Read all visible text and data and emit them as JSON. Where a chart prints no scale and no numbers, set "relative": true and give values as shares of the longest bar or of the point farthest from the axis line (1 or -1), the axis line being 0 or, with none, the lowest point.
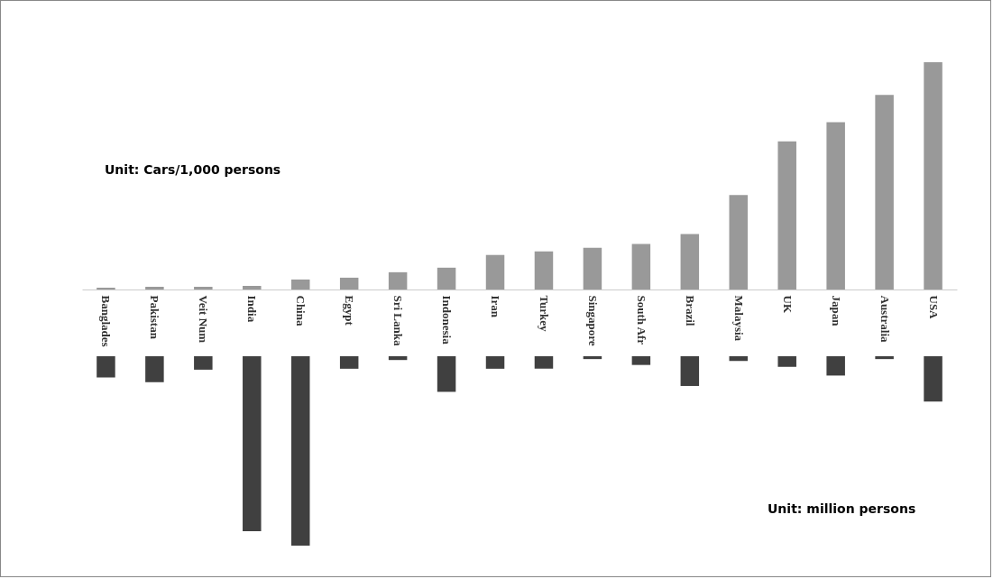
{
  "chart_data": [
    {
      "type": "bar",
      "relative": true,
      "categories": [
        "Banglades",
        "Pakistan",
        "Veit Num",
        "India",
        "China",
        "Egypt",
        "Sri Lanka",
        "Indonesia",
        "Iran",
        "Turkey",
        "Singapore",
        "South Afr",
        "Brazil",
        "Malaysia",
        "UK",
        "Japan",
        "Australia",
        "USA"
      ],
      "values": [
        0.008,
        0.012,
        0.012,
        0.016,
        0.044,
        0.052,
        0.076,
        0.096,
        0.152,
        0.168,
        0.184,
        0.2,
        0.244,
        0.416,
        0.652,
        0.736,
        0.856,
        1
      ],
      "color": "#999999",
      "annotations": [
        "Unit: Cars/1,000 persons"
      ]
    },
    {
      "type": "bar",
      "relative": true,
      "categories": [
        null,
        null,
        null,
        null,
        null,
        null,
        null,
        null,
        null,
        null,
        null,
        null,
        null,
        null,
        null,
        null,
        null,
        null
      ],
      "values": [
        -0.112,
        -0.137,
        -0.071,
        -0.924,
        -1,
        -0.066,
        -0.02,
        -0.188,
        -0.066,
        -0.066,
        -0.015,
        -0.046,
        -0.157,
        -0.025,
        -0.056,
        -0.102,
        -0.015,
        -0.239
      ],
      "color": "#404040",
      "annotations": [
        "Unit: million persons"
      ]
    }
  ]
}
